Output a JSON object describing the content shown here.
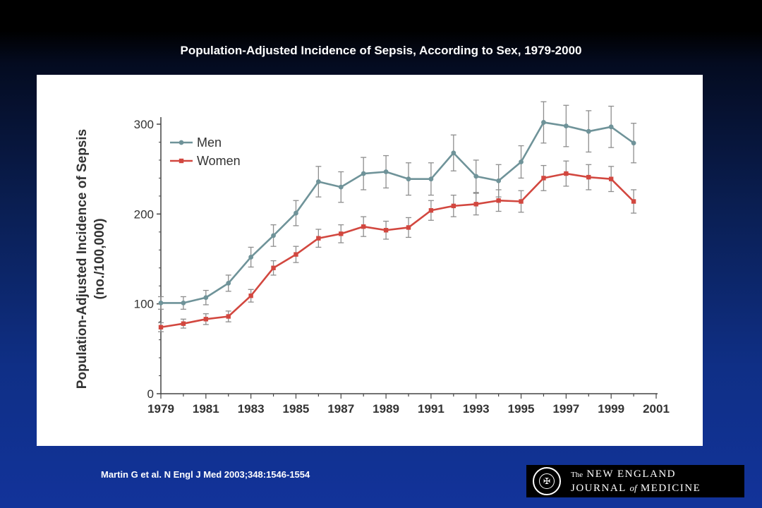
{
  "slide": {
    "title": "Population-Adjusted Incidence of Sepsis, According to Sex, 1979-2000",
    "citation": "Martin G et al. N Engl J Med 2003;348:1546-1554"
  },
  "logo": {
    "line1_prefix": "The",
    "line1_main": "NEW ENGLAND",
    "line2_a": "JOURNAL",
    "line2_of": "of",
    "line2_b": "MEDICINE",
    "seal_glyph": "✠"
  },
  "colors": {
    "men": "#6f9399",
    "women": "#d2473f",
    "error": "#8e8e8e",
    "axis": "#444444"
  },
  "chart_data": {
    "type": "line",
    "title": "Population-Adjusted Incidence of Sepsis, According to Sex, 1979-2000",
    "ylabel_line1": "Population-Adjusted Incidence of Sepsis",
    "ylabel_line2": "(no./100,000)",
    "xlabel": "",
    "xlim": [
      1979,
      2001
    ],
    "ylim": [
      0,
      300
    ],
    "x_ticks": [
      "1979",
      "1981",
      "1983",
      "1985",
      "1987",
      "1989",
      "1991",
      "1993",
      "1995",
      "1997",
      "1999",
      "2001"
    ],
    "y_ticks": [
      "0",
      "100",
      "200",
      "300"
    ],
    "legend_position": "top-left",
    "grid": false,
    "x": [
      1979,
      1980,
      1981,
      1982,
      1983,
      1984,
      1985,
      1986,
      1987,
      1988,
      1989,
      1990,
      1991,
      1992,
      1993,
      1994,
      1995,
      1996,
      1997,
      1998,
      1999,
      2000
    ],
    "series": [
      {
        "name": "Men",
        "color": "#6f9399",
        "marker": "circle",
        "values": [
          101,
          101,
          107,
          123,
          152,
          176,
          201,
          236,
          230,
          245,
          247,
          239,
          239,
          268,
          242,
          237,
          258,
          302,
          298,
          292,
          297,
          279
        ],
        "error": [
          7,
          7,
          8,
          9,
          11,
          12,
          14,
          17,
          17,
          18,
          18,
          18,
          18,
          20,
          18,
          18,
          18,
          23,
          23,
          23,
          23,
          22
        ]
      },
      {
        "name": "Women",
        "color": "#d2473f",
        "marker": "square",
        "values": [
          74,
          78,
          83,
          86,
          109,
          140,
          155,
          173,
          178,
          186,
          182,
          185,
          204,
          209,
          211,
          215,
          214,
          240,
          245,
          241,
          239,
          214
        ],
        "error": [
          5,
          5,
          6,
          6,
          7,
          8,
          9,
          10,
          10,
          11,
          10,
          11,
          11,
          12,
          12,
          12,
          12,
          14,
          14,
          14,
          14,
          13
        ]
      }
    ]
  }
}
